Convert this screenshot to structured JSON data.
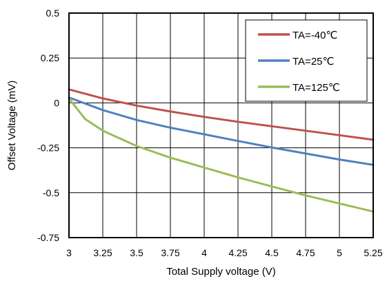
{
  "chart_data": {
    "type": "line",
    "title": "",
    "xlabel": "Total Supply voltage (V)",
    "ylabel": "Offset Voltage (mV)",
    "xlim": [
      3,
      5.25
    ],
    "ylim": [
      -0.75,
      0.5
    ],
    "xticks": [
      "3",
      "3.25",
      "3.5",
      "3.75",
      "4",
      "4.25",
      "4.5",
      "4.75",
      "5",
      "5.25"
    ],
    "yticks": [
      "0.5",
      "0.25",
      "0",
      "-0.25",
      "-0.5",
      "-0.75"
    ],
    "xtick_values": [
      3,
      3.25,
      3.5,
      3.75,
      4,
      4.25,
      4.5,
      4.75,
      5,
      5.25
    ],
    "ytick_values": [
      0.5,
      0.25,
      0,
      -0.25,
      -0.5,
      -0.75
    ],
    "grid": true,
    "legend_position": "top-right",
    "series": [
      {
        "name": "TA=-40℃",
        "color": "#c0504d",
        "x": [
          3,
          3.25,
          3.5,
          3.75,
          4,
          4.25,
          4.5,
          4.75,
          5,
          5.25
        ],
        "y": [
          0.075,
          0.025,
          -0.015,
          -0.048,
          -0.078,
          -0.105,
          -0.13,
          -0.155,
          -0.18,
          -0.205
        ]
      },
      {
        "name": "TA=25℃",
        "color": "#4f81bd",
        "x": [
          3,
          3.25,
          3.5,
          3.75,
          4,
          4.25,
          4.5,
          4.75,
          5,
          5.25
        ],
        "y": [
          0.03,
          -0.04,
          -0.095,
          -0.138,
          -0.175,
          -0.212,
          -0.248,
          -0.282,
          -0.315,
          -0.345
        ]
      },
      {
        "name": "TA=125℃",
        "color": "#9bbb59",
        "x": [
          3,
          3.12,
          3.25,
          3.5,
          3.75,
          4,
          4.25,
          4.5,
          4.75,
          5,
          5.25
        ],
        "y": [
          0.025,
          -0.09,
          -0.155,
          -0.24,
          -0.305,
          -0.36,
          -0.415,
          -0.465,
          -0.515,
          -0.56,
          -0.605
        ]
      }
    ]
  }
}
